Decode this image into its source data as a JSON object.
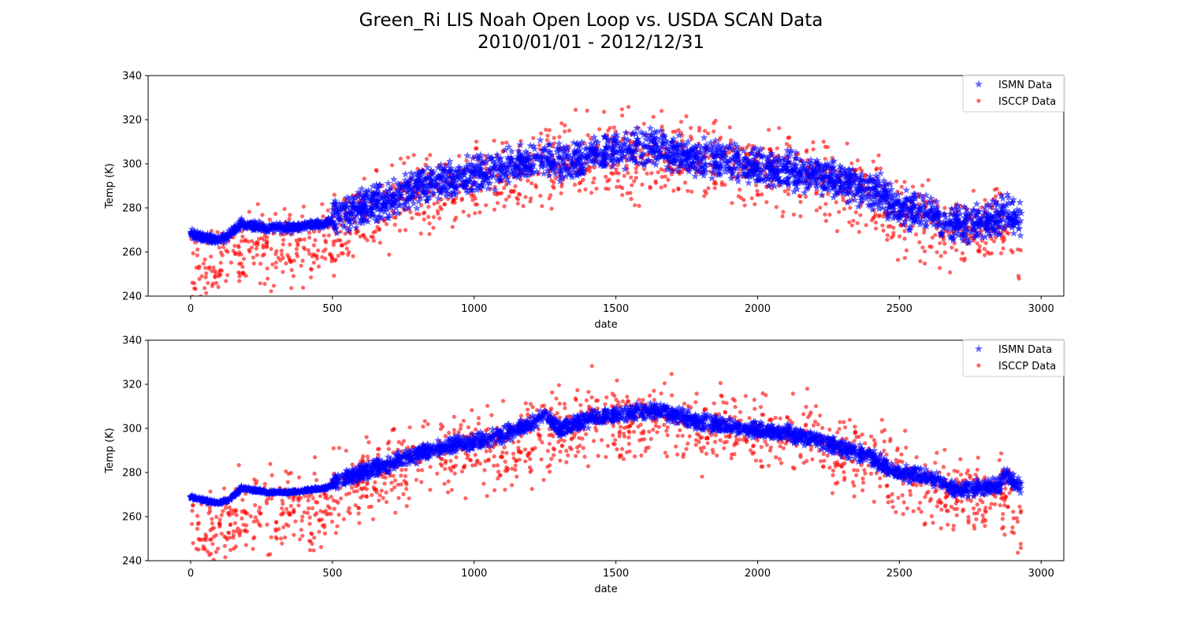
{
  "figure": {
    "title_line1": "Green_Ri LIS Noah Open Loop vs. USDA SCAN Data",
    "title_line2": "2010/01/01 - 2012/12/31"
  },
  "colors": {
    "ismn": "#0000ff",
    "isccp": "#ff0000"
  },
  "chart_data": [
    {
      "type": "scatter",
      "xlabel": "date",
      "ylabel": "Temp (K)",
      "xlim": [
        -150,
        3080
      ],
      "ylim": [
        240,
        340
      ],
      "xticks": [
        0,
        500,
        1000,
        1500,
        2000,
        2500,
        3000
      ],
      "yticks": [
        240,
        260,
        280,
        300,
        320,
        340
      ],
      "legend_position": "top-right",
      "grid": false,
      "series": [
        {
          "name": "ISMN Data",
          "marker": "star",
          "color": "#0000ff",
          "spread": 7,
          "x": [
            0,
            30,
            60,
            100,
            140,
            180,
            220,
            280,
            350,
            420,
            480,
            520,
            600,
            700,
            800,
            900,
            1000,
            1100,
            1200,
            1250,
            1300,
            1400,
            1500,
            1600,
            1700,
            1800,
            1900,
            2000,
            2100,
            2200,
            2300,
            2400,
            2450,
            2500,
            2550,
            2600,
            2650,
            2700,
            2750,
            2800,
            2850,
            2870,
            2930
          ],
          "y": [
            269,
            267,
            266,
            265,
            268,
            273,
            272,
            271,
            271,
            272,
            273,
            276,
            280,
            284,
            289,
            293,
            295,
            298,
            302,
            304,
            300,
            303,
            306,
            308,
            306,
            303,
            301,
            298,
            297,
            295,
            292,
            288,
            285,
            280,
            279,
            278,
            274,
            272,
            273,
            273,
            275,
            279,
            273
          ]
        },
        {
          "name": "ISCCP Data",
          "marker": "circle",
          "color": "#ff0000",
          "spread": 16,
          "x": [
            0,
            50,
            100,
            150,
            200,
            300,
            400,
            450,
            500,
            600,
            700,
            800,
            900,
            1000,
            1100,
            1200,
            1300,
            1400,
            1500,
            1600,
            1700,
            1800,
            1900,
            2000,
            2100,
            2200,
            2300,
            2400,
            2500,
            2600,
            2700,
            2800,
            2850,
            2900,
            2930
          ],
          "y": [
            255,
            253,
            255,
            258,
            262,
            262,
            263,
            261,
            268,
            275,
            280,
            285,
            288,
            290,
            292,
            296,
            300,
            303,
            302,
            304,
            303,
            300,
            300,
            298,
            296,
            294,
            290,
            285,
            279,
            273,
            270,
            270,
            272,
            268,
            253
          ]
        }
      ]
    },
    {
      "type": "scatter",
      "xlabel": "date",
      "ylabel": "Temp (K)",
      "xlim": [
        -150,
        3080
      ],
      "ylim": [
        240,
        340
      ],
      "xticks": [
        0,
        500,
        1000,
        1500,
        2000,
        2500,
        3000
      ],
      "yticks": [
        240,
        260,
        280,
        300,
        320,
        340
      ],
      "legend_position": "top-right",
      "grid": false,
      "series": [
        {
          "name": "ISMN Data",
          "marker": "star",
          "color": "#0000ff",
          "spread": 3,
          "x": [
            0,
            30,
            60,
            100,
            140,
            180,
            220,
            280,
            350,
            420,
            480,
            520,
            600,
            700,
            800,
            900,
            1000,
            1100,
            1200,
            1250,
            1300,
            1400,
            1500,
            1600,
            1700,
            1800,
            1900,
            2000,
            2100,
            2200,
            2300,
            2400,
            2450,
            2500,
            2550,
            2600,
            2650,
            2700,
            2750,
            2800,
            2850,
            2870,
            2930
          ],
          "y": [
            269,
            268,
            267,
            266,
            268,
            273,
            272,
            271,
            271,
            272,
            273,
            276,
            280,
            284,
            288,
            292,
            294,
            297,
            302,
            306,
            300,
            304,
            306,
            308,
            307,
            303,
            301,
            299,
            298,
            295,
            291,
            287,
            283,
            280,
            279,
            278,
            276,
            272,
            273,
            273,
            274,
            279,
            273
          ]
        },
        {
          "name": "ISCCP Data",
          "marker": "circle",
          "color": "#ff0000",
          "spread": 16,
          "x": [
            0,
            50,
            100,
            150,
            200,
            300,
            400,
            450,
            500,
            600,
            700,
            800,
            900,
            1000,
            1100,
            1200,
            1300,
            1400,
            1500,
            1600,
            1700,
            1800,
            1900,
            2000,
            2100,
            2200,
            2300,
            2400,
            2500,
            2600,
            2700,
            2800,
            2850,
            2900,
            2930
          ],
          "y": [
            255,
            253,
            255,
            258,
            262,
            262,
            263,
            261,
            268,
            275,
            280,
            285,
            288,
            290,
            292,
            296,
            300,
            303,
            302,
            304,
            303,
            300,
            300,
            298,
            296,
            294,
            290,
            285,
            279,
            273,
            270,
            270,
            272,
            268,
            253
          ]
        }
      ]
    }
  ]
}
